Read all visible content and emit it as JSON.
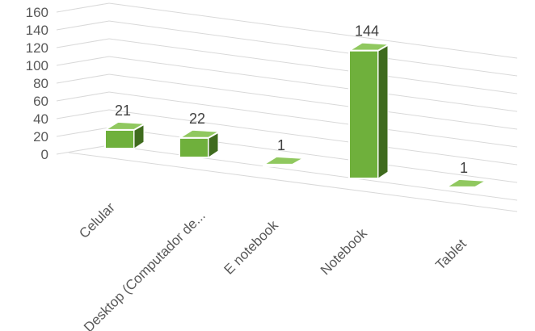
{
  "chart_data": {
    "type": "bar",
    "style": "3d-column",
    "categories": [
      "Celular",
      "Desktop (Computador de...",
      "E notebook",
      "Notebook",
      "Tablet"
    ],
    "values": [
      21,
      22,
      1,
      144,
      1
    ],
    "ylim": [
      0,
      160
    ],
    "yticks": [
      "0",
      "20",
      "40",
      "60",
      "80",
      "100",
      "120",
      "140",
      "160"
    ],
    "grid": true,
    "legend": "none",
    "colors": {
      "front": "#6fb03c",
      "side": "#3f6b1e",
      "top": "#90c85f",
      "edge": "#ffffff",
      "grid": "#d9d9d9",
      "text": "#595959"
    }
  }
}
